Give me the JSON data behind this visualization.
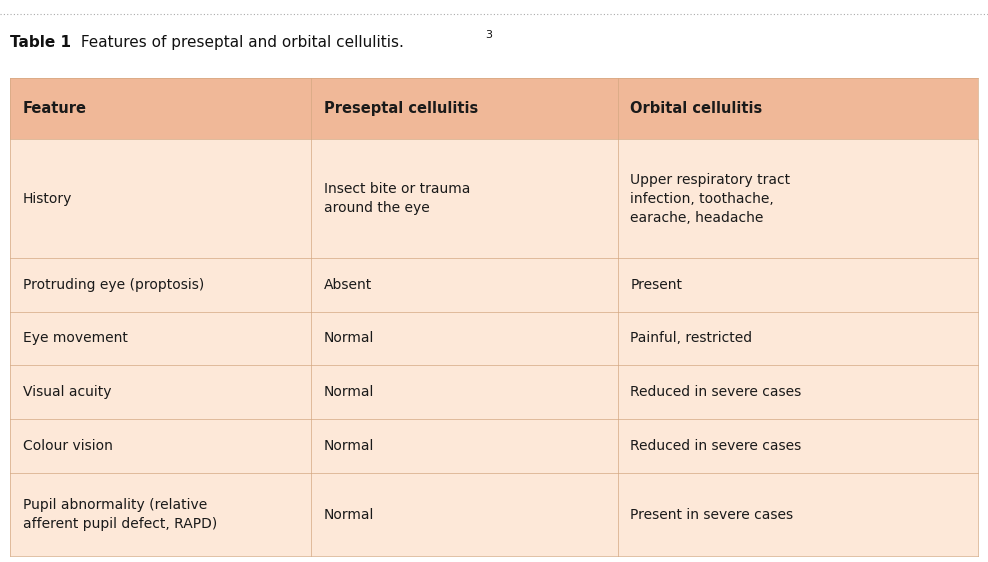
{
  "title_bold": "Table 1",
  "title_normal": " Features of preseptal and orbital cellulitis.",
  "title_superscript": "3",
  "background_color": "#ffffff",
  "header_bg": "#f0b898",
  "row_bg_light": "#fde8d8",
  "header_text_color": "#1a1a1a",
  "body_text_color": "#1a1a1a",
  "dotted_line_color": "#aaaaaa",
  "line_color": "#d4a882",
  "col_headers": [
    "Feature",
    "Preseptal cellulitis",
    "Orbital cellulitis"
  ],
  "rows": [
    {
      "feature": "History",
      "preseptal": "Insect bite or trauma\naround the eye",
      "orbital": "Upper respiratory tract\ninfection, toothache,\nearache, headache"
    },
    {
      "feature": "Protruding eye (proptosis)",
      "preseptal": "Absent",
      "orbital": "Present"
    },
    {
      "feature": "Eye movement",
      "preseptal": "Normal",
      "orbital": "Painful, restricted"
    },
    {
      "feature": "Visual acuity",
      "preseptal": "Normal",
      "orbital": "Reduced in severe cases"
    },
    {
      "feature": "Colour vision",
      "preseptal": "Normal",
      "orbital": "Reduced in severe cases"
    },
    {
      "feature": "Pupil abnormality (relative\nafferent pupil defect, RAPD)",
      "preseptal": "Normal",
      "orbital": "Present in severe cases"
    }
  ]
}
